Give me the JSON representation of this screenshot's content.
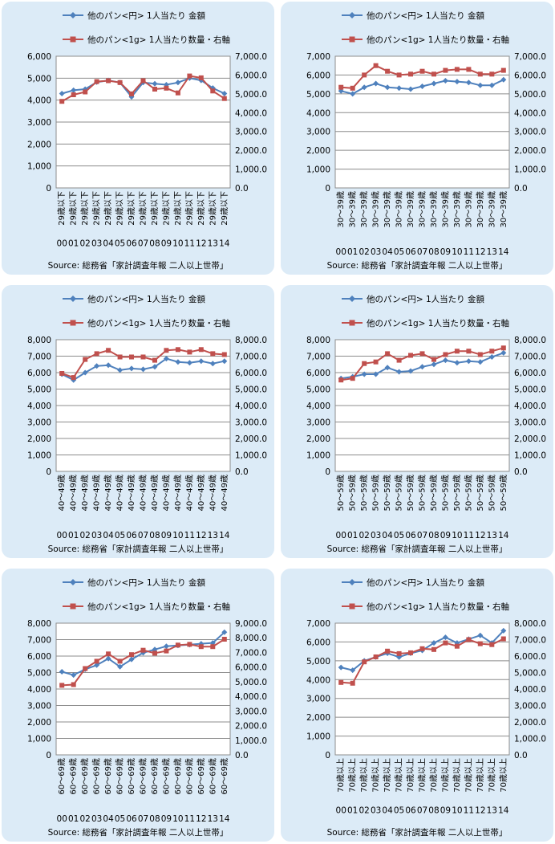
{
  "charts": [
    {
      "legend": {
        "amount_series": "他のパン<円> 1人当たり 金額",
        "quantity_series": "他のパン<1g> 1人当たり数量・右軸"
      },
      "source": "Source: 総務省「家計調査年報 二人以上世帯」",
      "colors": {
        "amount": "#4f81bd",
        "quantity": "#c0504d"
      }
    },
    {
      "legend": {
        "amount_series": "他のパン<円> 1人当たり 金額",
        "quantity_series": "他のパン<1g> 1人当たり数量・右軸"
      },
      "source": "Source: 総務省「家計調査年報 二人以上世帯」",
      "colors": {
        "amount": "#4f81bd",
        "quantity": "#c0504d"
      }
    },
    {
      "legend": {
        "amount_series": "他のパン<円> 1人当たり 金額",
        "quantity_series": "他のパン<1g> 1人当たり数量・右軸"
      },
      "source": "Source: 総務省「家計調査年報 二人以上世帯」",
      "colors": {
        "amount": "#4f81bd",
        "quantity": "#c0504d"
      }
    },
    {
      "legend": {
        "amount_series": "他のパン<円> 1人当たり 金額",
        "quantity_series": "他のパン<1g> 1人当たり数量・右軸"
      },
      "source": "Source: 総務省「家計調査年報 二人以上世帯」",
      "colors": {
        "amount": "#4f81bd",
        "quantity": "#c0504d"
      }
    },
    {
      "legend": {
        "amount_series": "他のパン<円> 1人当たり 金額",
        "quantity_series": "他のパン<1g> 1人当たり数量・右軸"
      },
      "source": "Source: 総務省「家計調査年報 二人以上世帯」",
      "colors": {
        "amount": "#4f81bd",
        "quantity": "#c0504d"
      }
    },
    {
      "legend": {
        "amount_series": "他のパン<円> 1人当たり 金額",
        "quantity_series": "他のパン<1g> 1人当たり数量・右軸"
      },
      "source": "Source: 総務省「家計調査年報 二人以上世帯」",
      "colors": {
        "amount": "#4f81bd",
        "quantity": "#c0504d"
      }
    }
  ],
  "chart_data": [
    {
      "type": "line",
      "age_label": "29歳以下",
      "categories": [
        "00",
        "01",
        "02",
        "03",
        "04",
        "05",
        "06",
        "07",
        "08",
        "09",
        "10",
        "11",
        "12",
        "13",
        "14"
      ],
      "series": [
        {
          "name": "他のパン<円> 1人当たり 金額",
          "axis": "left",
          "values": [
            4300,
            4450,
            4500,
            4820,
            4900,
            4800,
            4150,
            4800,
            4750,
            4700,
            4800,
            5000,
            4900,
            4550,
            4300
          ]
        },
        {
          "name": "他のパン<1g> 1人当たり数量・右軸",
          "axis": "right",
          "values": [
            4600,
            4950,
            5100,
            5650,
            5700,
            5600,
            5000,
            5700,
            5250,
            5300,
            5050,
            5950,
            5850,
            5150,
            4750
          ]
        }
      ],
      "y_left": {
        "min": 0,
        "max": 6000,
        "step": 1000,
        "labels": [
          "0",
          "1,000",
          "2,000",
          "3,000",
          "4,000",
          "5,000",
          "6,000"
        ]
      },
      "y_right": {
        "min": 0,
        "max": 7000,
        "step": 1000,
        "labels": [
          "0.0",
          "1,000.0",
          "2,000.0",
          "3,000.0",
          "4,000.0",
          "5,000.0",
          "6,000.0",
          "7,000.0"
        ]
      },
      "grid": true,
      "legend_position": "top"
    },
    {
      "type": "line",
      "age_label": "30～39歳",
      "categories": [
        "00",
        "01",
        "02",
        "03",
        "04",
        "05",
        "06",
        "07",
        "08",
        "09",
        "10",
        "11",
        "12",
        "13",
        "14"
      ],
      "series": [
        {
          "name": "他のパン<円> 1人当たり 金額",
          "axis": "left",
          "values": [
            5150,
            5000,
            5350,
            5550,
            5350,
            5300,
            5250,
            5400,
            5550,
            5700,
            5650,
            5600,
            5450,
            5450,
            5750
          ]
        },
        {
          "name": "他のパン<1g> 1人当たり数量・右軸",
          "axis": "right",
          "values": [
            5350,
            5300,
            6000,
            6500,
            6200,
            6000,
            6050,
            6200,
            6050,
            6250,
            6300,
            6300,
            6050,
            6050,
            6250
          ]
        }
      ],
      "y_left": {
        "min": 0,
        "max": 7000,
        "step": 1000,
        "labels": [
          "0",
          "1,000",
          "2,000",
          "3,000",
          "4,000",
          "5,000",
          "6,000",
          "7,000"
        ]
      },
      "y_right": {
        "min": 0,
        "max": 7000,
        "step": 1000,
        "labels": [
          "0.0",
          "1,000.0",
          "2,000.0",
          "3,000.0",
          "4,000.0",
          "5,000.0",
          "6,000.0",
          "7,000.0"
        ]
      },
      "grid": true,
      "legend_position": "top"
    },
    {
      "type": "line",
      "age_label": "40～49歳",
      "categories": [
        "00",
        "01",
        "02",
        "03",
        "04",
        "05",
        "06",
        "07",
        "08",
        "09",
        "10",
        "11",
        "12",
        "13",
        "14"
      ],
      "series": [
        {
          "name": "他のパン<円> 1人当たり 金額",
          "axis": "left",
          "values": [
            5900,
            5550,
            6000,
            6400,
            6450,
            6150,
            6250,
            6200,
            6350,
            6850,
            6650,
            6600,
            6700,
            6550,
            6700
          ]
        },
        {
          "name": "他のパン<1g> 1人当たり数量・右軸",
          "axis": "right",
          "values": [
            5950,
            5700,
            6800,
            7150,
            7350,
            6950,
            6950,
            6950,
            6750,
            7350,
            7400,
            7250,
            7400,
            7150,
            7100
          ]
        }
      ],
      "y_left": {
        "min": 0,
        "max": 8000,
        "step": 1000,
        "labels": [
          "0",
          "1,000",
          "2,000",
          "3,000",
          "4,000",
          "5,000",
          "6,000",
          "7,000",
          "8,000"
        ]
      },
      "y_right": {
        "min": 0,
        "max": 8000,
        "step": 1000,
        "labels": [
          "0.0",
          "1,000.0",
          "2,000.0",
          "3,000.0",
          "4,000.0",
          "5,000.0",
          "6,000.0",
          "7,000.0",
          "8,000.0"
        ]
      },
      "grid": true,
      "legend_position": "top"
    },
    {
      "type": "line",
      "age_label": "50～59歳",
      "categories": [
        "00",
        "01",
        "02",
        "03",
        "04",
        "05",
        "06",
        "07",
        "08",
        "09",
        "10",
        "11",
        "12",
        "13",
        "14"
      ],
      "series": [
        {
          "name": "他のパン<円> 1人当たり 金額",
          "axis": "left",
          "values": [
            5650,
            5750,
            5900,
            5900,
            6300,
            6050,
            6100,
            6350,
            6500,
            6750,
            6600,
            6700,
            6650,
            6950,
            7200
          ]
        },
        {
          "name": "他のパン<1g> 1人当たり数量・右軸",
          "axis": "right",
          "values": [
            5550,
            5650,
            6550,
            6650,
            7150,
            6750,
            7050,
            7150,
            6800,
            7100,
            7300,
            7300,
            7100,
            7300,
            7500
          ]
        }
      ],
      "y_left": {
        "min": 0,
        "max": 8000,
        "step": 1000,
        "labels": [
          "0",
          "1,000",
          "2,000",
          "3,000",
          "4,000",
          "5,000",
          "6,000",
          "7,000",
          "8,000"
        ]
      },
      "y_right": {
        "min": 0,
        "max": 8000,
        "step": 1000,
        "labels": [
          "0.0",
          "1,000.0",
          "2,000.0",
          "3,000.0",
          "4,000.0",
          "5,000.0",
          "6,000.0",
          "7,000.0",
          "8,000.0"
        ]
      },
      "grid": true,
      "legend_position": "top"
    },
    {
      "type": "line",
      "age_label": "60～69歳",
      "categories": [
        "00",
        "01",
        "02",
        "03",
        "04",
        "05",
        "06",
        "07",
        "08",
        "09",
        "10",
        "11",
        "12",
        "13",
        "14"
      ],
      "series": [
        {
          "name": "他のパン<円> 1人当たり 金額",
          "axis": "left",
          "values": [
            5050,
            4850,
            5200,
            5450,
            5850,
            5350,
            5800,
            6200,
            6400,
            6600,
            6650,
            6700,
            6750,
            6800,
            7450
          ]
        },
        {
          "name": "他のパン<1g> 1人当たり数量・右軸",
          "axis": "right",
          "values": [
            4750,
            4800,
            5900,
            6400,
            6900,
            6400,
            6850,
            7150,
            6950,
            7100,
            7500,
            7550,
            7400,
            7400,
            7900
          ]
        }
      ],
      "y_left": {
        "min": 0,
        "max": 8000,
        "step": 1000,
        "labels": [
          "0",
          "1,000",
          "2,000",
          "3,000",
          "4,000",
          "5,000",
          "6,000",
          "7,000",
          "8,000"
        ]
      },
      "y_right": {
        "min": 0,
        "max": 9000,
        "step": 1000,
        "labels": [
          "0.0",
          "1,000.0",
          "2,000.0",
          "3,000.0",
          "4,000.0",
          "5,000.0",
          "6,000.0",
          "7,000.0",
          "8,000.0",
          "9,000.0"
        ]
      },
      "grid": true,
      "legend_position": "top"
    },
    {
      "type": "line",
      "age_label": "70歳以上",
      "categories": [
        "00",
        "01",
        "02",
        "03",
        "04",
        "05",
        "06",
        "07",
        "08",
        "09",
        "10",
        "11",
        "12",
        "13",
        "14"
      ],
      "series": [
        {
          "name": "他のパン<円> 1人当たり 金額",
          "axis": "left",
          "values": [
            4650,
            4500,
            5000,
            5200,
            5400,
            5200,
            5400,
            5550,
            5950,
            6250,
            5950,
            6150,
            6350,
            5950,
            6600
          ]
        },
        {
          "name": "他のパン<1g> 1人当たり数量・右軸",
          "axis": "right",
          "values": [
            4400,
            4350,
            5650,
            5950,
            6300,
            6150,
            6200,
            6450,
            6400,
            6800,
            6600,
            7000,
            6750,
            6700,
            7050
          ]
        }
      ],
      "y_left": {
        "min": 0,
        "max": 7000,
        "step": 1000,
        "labels": [
          "0",
          "1,000",
          "2,000",
          "3,000",
          "4,000",
          "5,000",
          "6,000",
          "7,000"
        ]
      },
      "y_right": {
        "min": 0,
        "max": 8000,
        "step": 1000,
        "labels": [
          "0.0",
          "1,000.0",
          "2,000.0",
          "3,000.0",
          "4,000.0",
          "5,000.0",
          "6,000.0",
          "7,000.0",
          "8,000.0"
        ]
      },
      "grid": true,
      "legend_position": "top"
    }
  ]
}
